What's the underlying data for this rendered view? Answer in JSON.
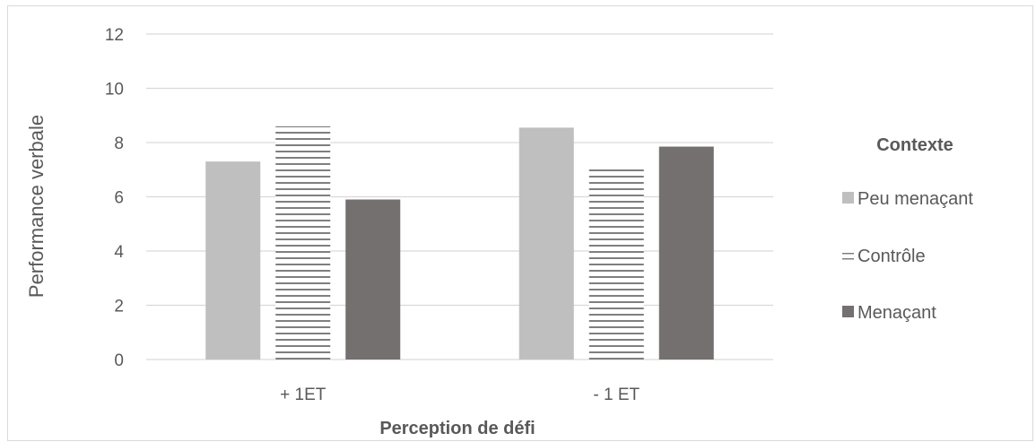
{
  "chart_data": {
    "type": "bar",
    "categories": [
      "+ 1ET",
      "- 1 ET"
    ],
    "series": [
      {
        "name": "Peu menaçant",
        "values": [
          7.3,
          8.55
        ],
        "color": "#bfbfbf",
        "pattern": "solid"
      },
      {
        "name": "Contrôle",
        "values": [
          8.6,
          7.15
        ],
        "color": "#7f7f7f",
        "pattern": "horizontal-lines"
      },
      {
        "name": "Menaçant",
        "values": [
          5.9,
          7.85
        ],
        "color": "#757070",
        "pattern": "solid"
      }
    ],
    "xlabel": "Perception de défi",
    "ylabel": "Performance  verbale",
    "ylim": [
      0,
      12
    ],
    "yticks": [
      "0",
      "2",
      "4",
      "6",
      "8",
      "10",
      "12"
    ],
    "legend_title": "Contexte",
    "legend_position": "right",
    "grid": true,
    "gridline_color": "#d9d9d9"
  }
}
